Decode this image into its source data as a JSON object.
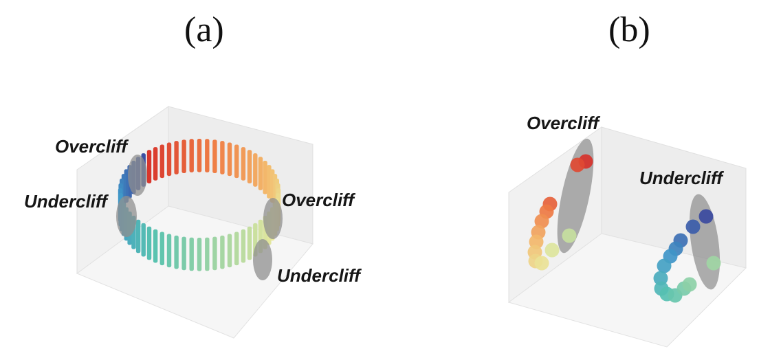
{
  "panels": [
    {
      "label": "(a)"
    },
    {
      "label": "(b)"
    }
  ],
  "annotations": {
    "a_overcliff_top": "Overcliff",
    "a_undercliff_left": "Undercliff",
    "a_overcliff_right": "Overcliff",
    "a_undercliff_right": "Undercliff",
    "b_overcliff": "Overcliff",
    "b_undercliff": "Undercliff"
  },
  "colors": {
    "highlight_ellipse": "#8f8f8f",
    "pane_wall": "#f2f2f2",
    "pane_floor": "#f7f7f7",
    "pane_edge": "#dedede",
    "colormap": [
      "#3b4aa0",
      "#3f97c9",
      "#57c2b0",
      "#a5d6a3",
      "#e9e89c",
      "#f3bd6f",
      "#ef7d45",
      "#d7322b"
    ]
  }
}
